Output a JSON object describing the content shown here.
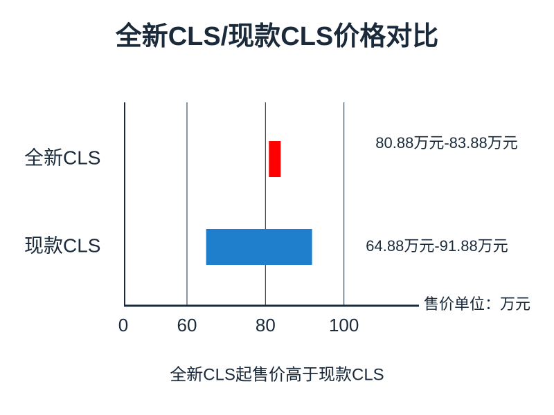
{
  "chart_data": {
    "type": "floating-bar",
    "title": "全新CLS/现款CLS价格对比",
    "categories": [
      "全新CLS",
      "现款CLS"
    ],
    "low": [
      80.88,
      64.88
    ],
    "high": [
      83.88,
      91.88
    ],
    "value_labels": [
      "80.88万元-83.88万元",
      "64.88万元-91.88万元"
    ],
    "colors": [
      "#ff0000",
      "#1f7fcc"
    ],
    "xlabel": "售价单位：万元",
    "xlim": [
      0,
      120
    ],
    "xticks": [
      0,
      60,
      80,
      100
    ],
    "axis_break": 60,
    "grid": true,
    "caption": "全新CLS起售价高于现款CLS"
  }
}
